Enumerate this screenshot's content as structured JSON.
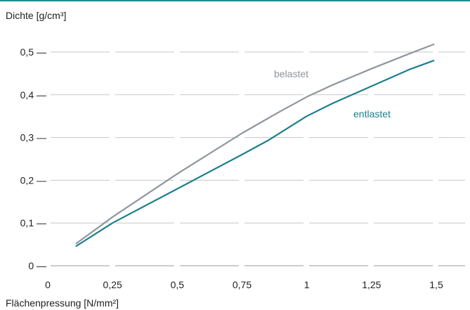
{
  "chart_data": {
    "type": "line",
    "ylabel": "Dichte [g/cm³]",
    "xlabel": "Flächenpressung [N/mm²]",
    "xlim": [
      0,
      1.62
    ],
    "ylim": [
      0,
      0.55
    ],
    "x_ticks": [
      0,
      0.25,
      0.5,
      0.75,
      1,
      1.25,
      1.5
    ],
    "x_tick_labels": [
      "0",
      "0,25",
      "0,5",
      "0,75",
      "1",
      "1,25",
      "1,5"
    ],
    "y_ticks": [
      0,
      0.1,
      0.2,
      0.3,
      0.4,
      0.5
    ],
    "y_tick_labels": [
      "0 —",
      "0,1 —",
      "0,2 —",
      "0,3 —",
      "0,4 —",
      "0,5 —"
    ],
    "grid": true,
    "series": [
      {
        "name": "belastet",
        "color": "#8e969e",
        "x": [
          0.11,
          0.25,
          0.5,
          0.75,
          0.9,
          1.0,
          1.1,
          1.25,
          1.4,
          1.49
        ],
        "y": [
          0.052,
          0.114,
          0.215,
          0.31,
          0.362,
          0.395,
          0.423,
          0.461,
          0.497,
          0.518
        ]
      },
      {
        "name": "entlastet",
        "color": "#1b7f8c",
        "x": [
          0.11,
          0.25,
          0.5,
          0.75,
          0.85,
          1.0,
          1.1,
          1.25,
          1.4,
          1.49
        ],
        "y": [
          0.046,
          0.1,
          0.18,
          0.26,
          0.293,
          0.35,
          0.38,
          0.42,
          0.46,
          0.48
        ]
      }
    ]
  }
}
